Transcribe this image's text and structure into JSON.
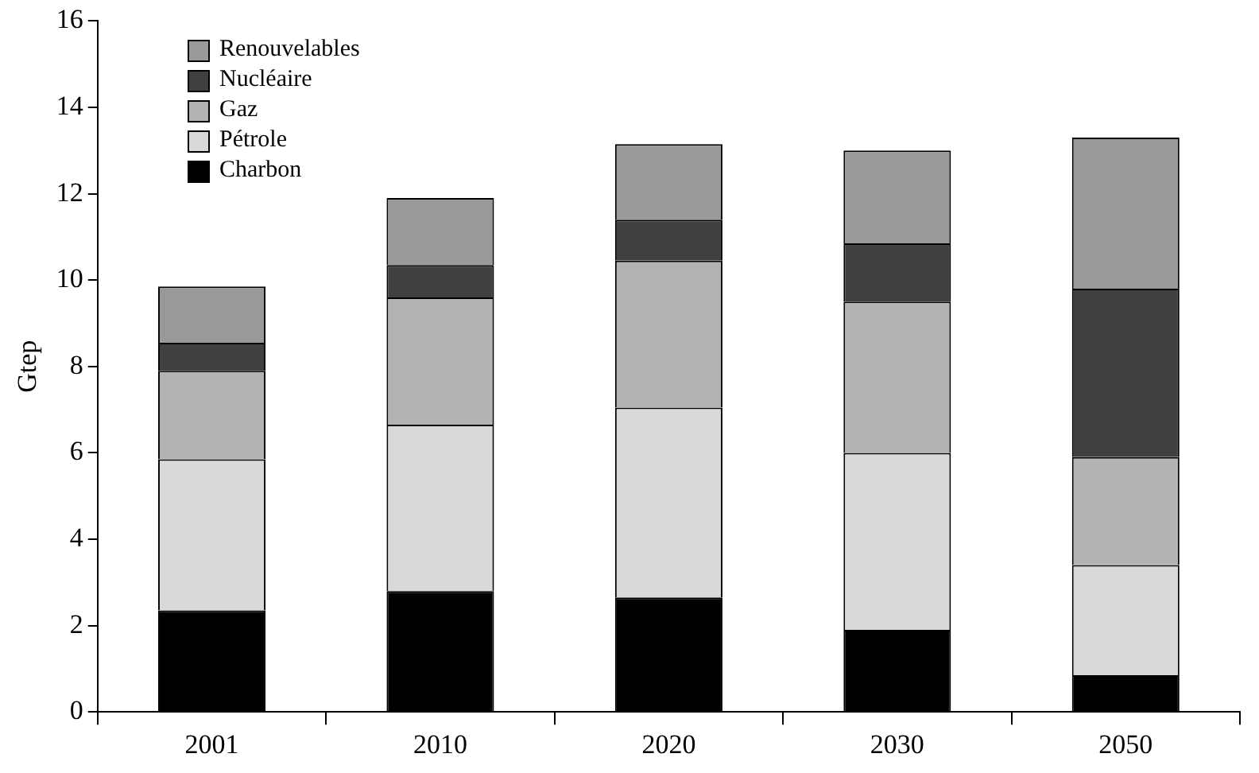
{
  "chart_data": {
    "type": "bar",
    "stacked": true,
    "ylabel": "Gtep",
    "categories": [
      "2001",
      "2010",
      "2020",
      "2030",
      "2050"
    ],
    "series": [
      {
        "name": "Charbon",
        "color": "#000000",
        "values": [
          2.35,
          2.8,
          2.65,
          1.9,
          0.85
        ]
      },
      {
        "name": "Pétrole",
        "color": "#d9d9d9",
        "values": [
          3.5,
          3.85,
          4.4,
          4.1,
          2.55
        ]
      },
      {
        "name": "Gaz",
        "color": "#b3b3b3",
        "values": [
          2.05,
          2.95,
          3.4,
          3.5,
          2.5
        ]
      },
      {
        "name": "Nucléaire",
        "color": "#404040",
        "values": [
          0.65,
          0.75,
          0.95,
          1.35,
          3.9
        ]
      },
      {
        "name": "Renouvelables",
        "color": "#999999",
        "values": [
          1.3,
          1.55,
          1.75,
          2.15,
          3.5
        ]
      }
    ],
    "ylim": [
      0,
      16
    ],
    "yticks": [
      0,
      2,
      4,
      6,
      8,
      10,
      12,
      14,
      16
    ],
    "grid": false,
    "legend": "top left"
  }
}
